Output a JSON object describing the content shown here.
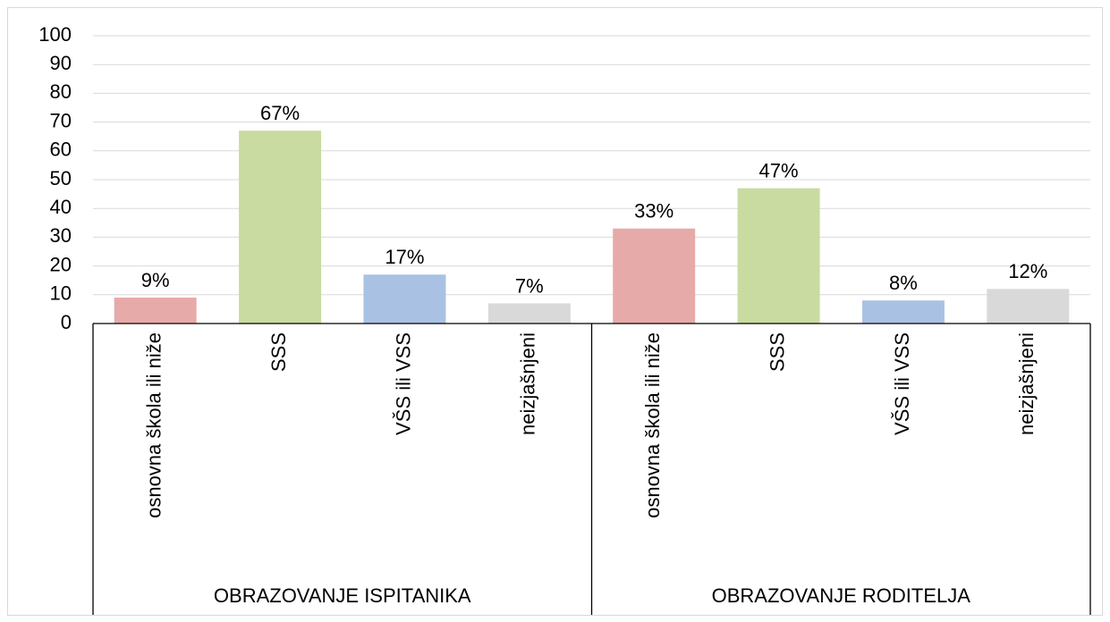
{
  "chart_data": {
    "type": "bar",
    "groups": [
      {
        "label": "OBRAZOVANJE ISPITANIKA",
        "categories": [
          "osnovna škola ili niže",
          "SSS",
          "VŠS ili VSS",
          "neizjašnjeni"
        ],
        "values": [
          9,
          67,
          17,
          7
        ],
        "value_labels": [
          "9%",
          "67%",
          "17%",
          "7%"
        ]
      },
      {
        "label": "OBRAZOVANJE RODITELJA",
        "categories": [
          "osnovna škola ili niže",
          "SSS",
          "VŠS ili VSS",
          "neizjašnjeni"
        ],
        "values": [
          33,
          47,
          8,
          12
        ],
        "value_labels": [
          "33%",
          "47%",
          "8%",
          "12%"
        ]
      }
    ],
    "colors": [
      "#e6aaa9",
      "#c9dba1",
      "#a9c1e3",
      "#d9d9d9"
    ],
    "ylim": [
      0,
      100
    ],
    "yticks": [
      0,
      10,
      20,
      30,
      40,
      50,
      60,
      70,
      80,
      90,
      100
    ],
    "grid": true
  }
}
